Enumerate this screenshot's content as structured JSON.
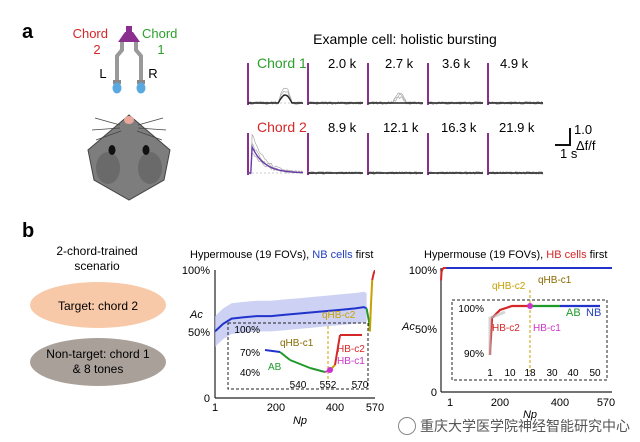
{
  "panel_a": {
    "label": "a",
    "title": "Example cell: holistic bursting",
    "speaker_left_label": "Chord",
    "speaker_left_num": "2",
    "speaker_right_label": "Chord",
    "speaker_right_num": "1",
    "ear_left": "L",
    "ear_right": "R",
    "row1_label": "Chord 1",
    "row1_tones": [
      "2.0 k",
      "2.7 k",
      "3.6 k",
      "4.9 k"
    ],
    "row2_label": "Chord 2",
    "row2_tones": [
      "8.9 k",
      "12.1 k",
      "16.3 k",
      "21.9 k"
    ],
    "scale_amp": "1.0",
    "scale_time": "1 s",
    "scale_unit": "Δf/f",
    "colors": {
      "chord1": "#2ca02c",
      "chord2": "#d62728",
      "stim": "#8b2f8f",
      "trace_avg": "#6a3da8"
    }
  },
  "panel_b": {
    "label": "b",
    "scenario_title_1": "2-chord-trained",
    "scenario_title_2": "scenario",
    "target_text": "Target: chord 2",
    "nontarget_text_1": "Non-target: chord 1",
    "nontarget_text_2": "& 8 tones",
    "colors": {
      "target_fill": "#f7c9a8",
      "nontarget_fill": "#a9a09a"
    }
  },
  "chart_data": [
    {
      "type": "line",
      "title_prefix": "Hypermouse (19 FOVs),",
      "title_highlight": "NB cells",
      "title_suffix": "first",
      "title_highlight_color": "#1f3fbf",
      "ylabel": "Ac",
      "xlabel": "Np",
      "xlim": [
        1,
        570
      ],
      "ylim": [
        0,
        100
      ],
      "x_ticks": [
        "1",
        "200",
        "400",
        "570"
      ],
      "y_ticks": [
        "0",
        "50%",
        "100%"
      ],
      "series": [
        {
          "name": "NB",
          "color": "#2233cc",
          "x": [
            1,
            30,
            60,
            100,
            150,
            200,
            250,
            300,
            350,
            400,
            450,
            500,
            530,
            540
          ],
          "y": [
            52,
            58,
            62,
            63,
            64,
            64,
            65,
            66,
            67,
            68,
            69,
            70,
            71,
            70
          ]
        },
        {
          "name": "AB",
          "color": "#1f9a2a",
          "x": [
            540,
            545,
            550,
            552
          ],
          "y": [
            70,
            64,
            58,
            52
          ]
        },
        {
          "name": "qHB-c1",
          "color": "#c8a000",
          "x": [
            552,
            555,
            560
          ],
          "y": [
            52,
            70,
            92
          ]
        },
        {
          "name": "HB-c2",
          "color": "#d62728",
          "x": [
            560,
            565,
            570
          ],
          "y": [
            92,
            97,
            100
          ]
        }
      ],
      "inset": {
        "x_ticks": [
          "540",
          "552",
          "570"
        ],
        "y_ticks": [
          "40%",
          "70%",
          "100%"
        ],
        "labels": [
          "qHB-c2",
          "qHB-c1",
          "HB-c2",
          "AB",
          "HB-c1"
        ]
      }
    },
    {
      "type": "line",
      "title_prefix": "Hypermouse (19 FOVs),",
      "title_highlight": "HB cells",
      "title_suffix": "first",
      "title_highlight_color": "#d62728",
      "ylabel": "Ac",
      "xlabel": "Np",
      "xlim": [
        1,
        570
      ],
      "ylim": [
        0,
        100
      ],
      "x_ticks": [
        "1",
        "200",
        "400",
        "570"
      ],
      "y_ticks": [
        "0",
        "50%",
        "100%"
      ],
      "series": [
        {
          "name": "HB-c2",
          "color": "#d62728",
          "x": [
            1,
            3,
            6,
            10,
            18
          ],
          "y": [
            90,
            97,
            99,
            100,
            100
          ]
        },
        {
          "name": "NB",
          "color": "#2233cc",
          "x": [
            18,
            100,
            300,
            570
          ],
          "y": [
            100,
            100,
            100,
            100
          ]
        }
      ],
      "inset": {
        "x_ticks": [
          "1",
          "10",
          "18",
          "30",
          "40",
          "50"
        ],
        "y_ticks": [
          "90%",
          "100%"
        ],
        "labels": [
          "qHB-c2",
          "qHB-c1",
          "HB-c2",
          "HB-c1",
          "AB",
          "NB"
        ]
      }
    }
  ],
  "watermark": "重庆大学医学院神经智能研究中心"
}
